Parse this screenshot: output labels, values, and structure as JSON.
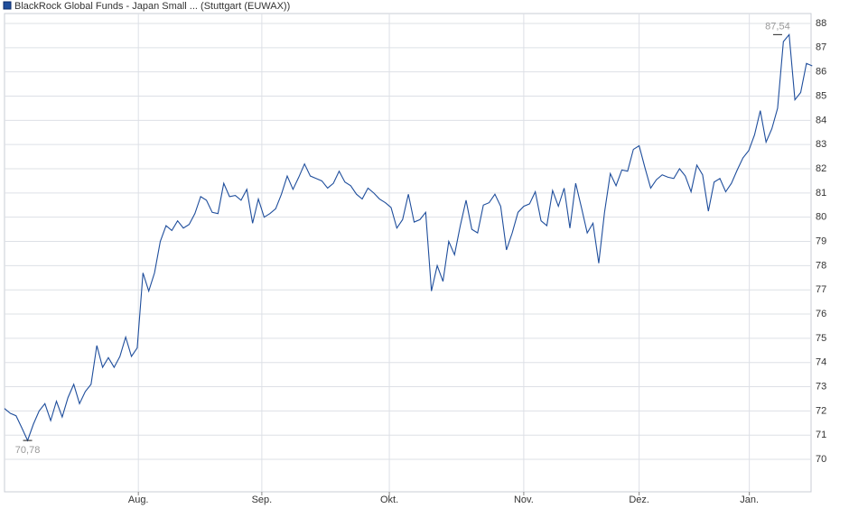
{
  "chart_data": {
    "type": "line",
    "series": [
      {
        "name": "BlackRock Global Funds - Japan Small ... (Stuttgart (EUWAX))",
        "color": "#1f4e9c",
        "values": [
          72.1,
          71.9,
          71.8,
          71.3,
          70.78,
          71.45,
          72.0,
          72.3,
          71.6,
          72.4,
          71.75,
          72.55,
          73.1,
          72.3,
          72.8,
          73.1,
          74.7,
          73.8,
          74.2,
          73.8,
          74.25,
          75.05,
          74.25,
          74.6,
          77.7,
          76.95,
          77.7,
          79.0,
          79.65,
          79.45,
          79.85,
          79.55,
          79.7,
          80.15,
          80.85,
          80.7,
          80.2,
          80.15,
          81.4,
          80.85,
          80.9,
          80.7,
          81.15,
          79.75,
          80.75,
          80.0,
          80.15,
          80.35,
          80.95,
          81.7,
          81.15,
          81.65,
          82.2,
          81.7,
          81.6,
          81.5,
          81.2,
          81.4,
          81.9,
          81.45,
          81.3,
          80.95,
          80.75,
          81.2,
          81.0,
          80.75,
          80.6,
          80.4,
          79.55,
          79.9,
          80.95,
          79.8,
          79.9,
          80.2,
          76.95,
          78.0,
          77.35,
          79.0,
          78.45,
          79.65,
          80.7,
          79.5,
          79.35,
          80.5,
          80.6,
          80.95,
          80.45,
          78.65,
          79.35,
          80.2,
          80.45,
          80.55,
          81.05,
          79.85,
          79.65,
          81.1,
          80.45,
          81.2,
          79.55,
          81.4,
          80.4,
          79.35,
          79.75,
          78.1,
          80.2,
          81.8,
          81.3,
          81.95,
          81.9,
          82.8,
          82.95,
          82.05,
          81.2,
          81.55,
          81.75,
          81.65,
          81.6,
          82.0,
          81.7,
          81.05,
          82.15,
          81.75,
          80.25,
          81.45,
          81.6,
          81.05,
          81.4,
          81.95,
          82.45,
          82.75,
          83.4,
          84.4,
          83.1,
          83.65,
          84.5,
          87.25,
          87.54,
          84.85,
          85.15,
          86.35,
          86.25
        ]
      }
    ],
    "xlim": [
      0,
      139.8
    ],
    "xticks": [
      {
        "value": 23.2,
        "label": "Aug."
      },
      {
        "value": 44.6,
        "label": "Sep."
      },
      {
        "value": 66.7,
        "label": "Okt."
      },
      {
        "value": 90.0,
        "label": "Nov."
      },
      {
        "value": 110.0,
        "label": "Dez."
      },
      {
        "value": 129.1,
        "label": "Jan."
      }
    ],
    "ylim": [
      68.66,
      88.41
    ],
    "yticks": [
      70,
      71,
      72,
      73,
      74,
      75,
      76,
      77,
      78,
      79,
      80,
      81,
      82,
      83,
      84,
      85,
      86,
      87,
      88
    ],
    "grid": true,
    "annotations": [
      {
        "x": 4,
        "value": 70.78,
        "label": "70,78"
      },
      {
        "x": 134,
        "value": 87.54,
        "label": "87,54"
      }
    ]
  }
}
